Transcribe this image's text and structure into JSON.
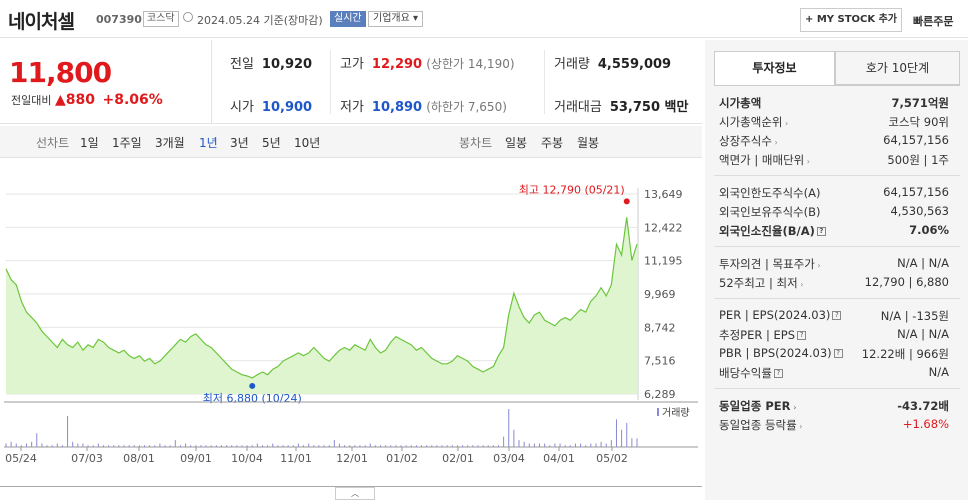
{
  "header": {
    "name": "네이처셀",
    "code": "007390",
    "market": "코스닥",
    "date": "2024.05.24 기준(장마감)",
    "realtime": "실시간",
    "corp_info": "기업개요 ▾",
    "mystock": "+ MY STOCK 추가",
    "quick_order": "빠른주문"
  },
  "price": {
    "current": "11,800",
    "change_label": "전일대비",
    "change": "▲880",
    "change_pct": "+8.06%"
  },
  "stats": {
    "prev_label": "전일",
    "prev": "10,920",
    "high_label": "고가",
    "high": "12,290",
    "upper": "(상한가 14,190)",
    "volume_label": "거래량",
    "volume": "4,559,009",
    "open_label": "시가",
    "open": "10,900",
    "low_label": "저가",
    "low": "10,890",
    "lower": "(하한가 7,650)",
    "amount_label": "거래대금",
    "amount": "53,750 백만"
  },
  "toolbar": {
    "line_label": "선차트",
    "periods": [
      "1일",
      "1주일",
      "3개월",
      "1년",
      "3년",
      "5년",
      "10년"
    ],
    "selected": "1년",
    "candle_label": "봉차트",
    "candles": [
      "일봉",
      "주봉",
      "월봉"
    ]
  },
  "chart_data": {
    "type": "area",
    "ylim": [
      6289,
      13649
    ],
    "yticks": [
      "13,649",
      "12,422",
      "11,195",
      "9,969",
      "8,742",
      "7,516",
      "6,289"
    ],
    "xticks": [
      "05/24",
      "07/03",
      "08/01",
      "09/01",
      "10/04",
      "11/01",
      "12/01",
      "01/02",
      "02/01",
      "03/04",
      "04/01",
      "05/02"
    ],
    "high_annotation": "최고 12,790 (05/21)",
    "low_annotation": "최저 6,880 (10/24)",
    "volume_label": "거래량",
    "colors": {
      "line": "#6cc63c",
      "fill": "#dff5cf",
      "high": "#e0191c",
      "low": "#1d57c8"
    },
    "values": [
      10900,
      10500,
      10300,
      9700,
      9300,
      9100,
      8900,
      8600,
      8400,
      8200,
      8000,
      8300,
      8100,
      8000,
      8200,
      7900,
      8100,
      8000,
      8300,
      8200,
      8000,
      7900,
      7800,
      7900,
      7700,
      7600,
      7700,
      7500,
      7600,
      7400,
      7500,
      7700,
      7900,
      8100,
      8300,
      8200,
      8400,
      8500,
      8300,
      8100,
      8000,
      7800,
      7600,
      7400,
      7200,
      7100,
      7000,
      6950,
      6880,
      7000,
      7100,
      7000,
      7200,
      7300,
      7500,
      7600,
      7700,
      7800,
      7700,
      7800,
      8000,
      7800,
      7600,
      7500,
      7700,
      7900,
      8000,
      7900,
      8100,
      8000,
      7900,
      8300,
      8000,
      7800,
      7900,
      8200,
      8400,
      8300,
      8200,
      8100,
      7900,
      8000,
      7800,
      7600,
      7500,
      7400,
      7400,
      7500,
      7700,
      7600,
      7500,
      7300,
      7200,
      7100,
      7200,
      7300,
      7700,
      8000,
      9200,
      10000,
      9500,
      9100,
      8900,
      9200,
      9300,
      9000,
      8900,
      8800,
      9000,
      9100,
      9000,
      9200,
      9400,
      9300,
      9700,
      9900,
      10200,
      9900,
      10300,
      11800,
      11400,
      12790,
      11200,
      11800
    ],
    "volumes": [
      2,
      3,
      2,
      1,
      2,
      3,
      8,
      2,
      1,
      1,
      2,
      1,
      18,
      3,
      2,
      2,
      1,
      1,
      2,
      1,
      1,
      1,
      1,
      1,
      1,
      1,
      1,
      1,
      1,
      1,
      2,
      1,
      1,
      4,
      1,
      2,
      1,
      1,
      1,
      1,
      1,
      1,
      1,
      1,
      1,
      1,
      1,
      1,
      1,
      2,
      1,
      1,
      2,
      1,
      1,
      1,
      1,
      2,
      1,
      2,
      1,
      1,
      1,
      1,
      4,
      2,
      1,
      1,
      1,
      1,
      1,
      2,
      1,
      1,
      1,
      1,
      1,
      1,
      1,
      1,
      1,
      1,
      1,
      1,
      1,
      1,
      1,
      1,
      1,
      1,
      1,
      1,
      1,
      1,
      1,
      1,
      1,
      6,
      22,
      10,
      4,
      3,
      2,
      2,
      2,
      2,
      1,
      2,
      2,
      1,
      1,
      2,
      2,
      1,
      2,
      2,
      3,
      2,
      4,
      16,
      10,
      14,
      5,
      5
    ]
  },
  "right": {
    "tab_invest": "투자정보",
    "tab_quote": "호가 10단계",
    "rows": [
      {
        "k": "시가총액",
        "v": "7,571억원"
      },
      {
        "k": "시가총액순위",
        "v": "코스닥 90위"
      },
      {
        "k": "상장주식수",
        "v": "64,157,156"
      },
      {
        "k": "액면가 | 매매단위",
        "v": "500원 | 1주"
      },
      {
        "k": "외국인한도주식수(A)",
        "v": "64,157,156"
      },
      {
        "k": "외국인보유주식수(B)",
        "v": "4,530,563"
      },
      {
        "k": "외국인소진율(B/A)",
        "v": "7.06%"
      },
      {
        "k": "투자의견 | 목표주가",
        "v": "N/A | N/A"
      },
      {
        "k": "52주최고 | 최저",
        "v": "12,790 | 6,880"
      },
      {
        "k": "PER | EPS(2024.03)",
        "v": "N/A | -135원"
      },
      {
        "k": "추정PER | EPS",
        "v": "N/A | N/A"
      },
      {
        "k": "PBR | BPS(2024.03)",
        "v": "12.22배 | 966원"
      },
      {
        "k": "배당수익률",
        "v": "N/A"
      },
      {
        "k": "동일업종 PER",
        "v": "-43.72배"
      },
      {
        "k": "동일업종 등락률",
        "v": "+1.68%"
      }
    ]
  }
}
